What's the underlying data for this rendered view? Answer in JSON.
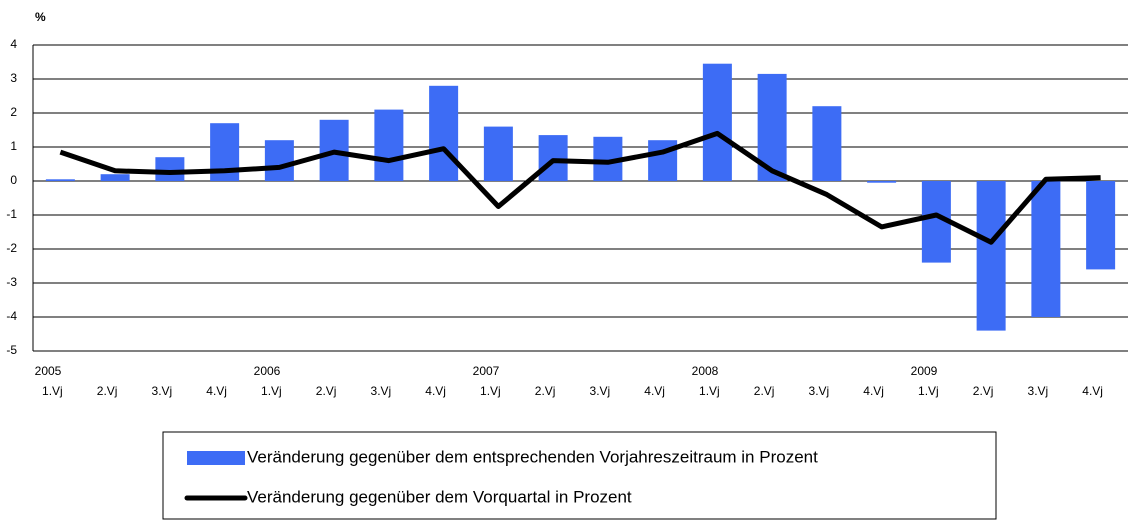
{
  "chart_data": {
    "type": "bar-line",
    "y_label": "%",
    "categories": [
      "1.Vj",
      "2.Vj",
      "3.Vj",
      "4.Vj",
      "1.Vj",
      "2.Vj",
      "3.Vj",
      "4.Vj",
      "1.Vj",
      "2.Vj",
      "3.Vj",
      "4.Vj",
      "1.Vj",
      "2.Vj",
      "3.Vj",
      "4.Vj",
      "1.Vj",
      "2.Vj",
      "3.Vj",
      "4.Vj"
    ],
    "years": [
      "2005",
      null,
      null,
      null,
      "2006",
      null,
      null,
      null,
      "2007",
      null,
      null,
      null,
      "2008",
      null,
      null,
      null,
      "2009",
      null,
      null,
      null
    ],
    "series": [
      {
        "name": "Veränderung gegenüber dem entsprechenden Vorjahreszeitraum in Prozent",
        "type": "bar",
        "color": "#3d6cf5",
        "values": [
          0.05,
          0.2,
          0.7,
          1.7,
          1.2,
          1.8,
          2.1,
          2.8,
          1.6,
          1.35,
          1.3,
          1.2,
          3.45,
          3.15,
          2.2,
          -0.05,
          -2.4,
          -4.4,
          -4.0,
          -2.6
        ]
      },
      {
        "name": "Veränderung gegenüber dem Vorquartal in Prozent",
        "type": "line",
        "color": "#000000",
        "values": [
          0.85,
          0.3,
          0.25,
          0.3,
          0.4,
          0.85,
          0.6,
          0.95,
          -0.75,
          0.6,
          0.55,
          0.85,
          1.4,
          0.3,
          -0.4,
          -1.35,
          -1.0,
          -1.8,
          0.05,
          0.1
        ]
      }
    ],
    "ylim": [
      -5,
      4
    ],
    "yticks": [
      -5,
      -4,
      -3,
      -2,
      -1,
      0,
      1,
      2,
      3,
      4
    ],
    "grid": true,
    "legend": "bottom"
  }
}
